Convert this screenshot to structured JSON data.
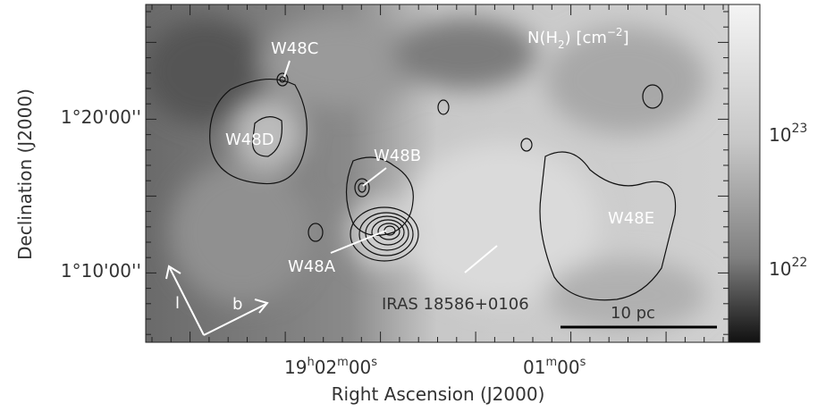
{
  "map": {
    "quantity": [
      "N(H",
      "2",
      ")  [cm",
      "−2",
      "]"
    ],
    "colorbar_ticks": [
      {
        "base": "10",
        "exp": "23"
      },
      {
        "base": "10",
        "exp": "22"
      }
    ],
    "x_axis": {
      "title": "Right Ascension (J2000)",
      "ticks": [
        [
          "19",
          "h",
          "02",
          "m",
          "00",
          "s"
        ],
        [
          "01",
          "m",
          "00",
          "s"
        ]
      ]
    },
    "y_axis": {
      "title": "Declination (J2000)",
      "ticks": [
        "1°20'00''",
        "1°10'00''"
      ]
    },
    "sources": [
      "W48C",
      "W48D",
      "W48B",
      "W48A",
      "W48E",
      "IRAS 18586+0106"
    ],
    "scale_bar": "10 pc",
    "galactic_axes": [
      "l",
      "b"
    ]
  }
}
